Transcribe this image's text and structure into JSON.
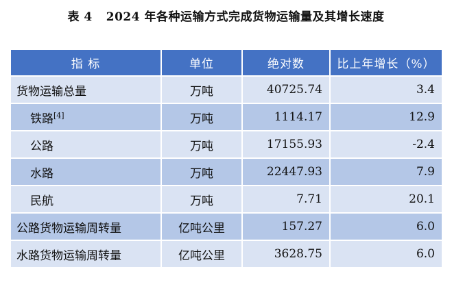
{
  "title": {
    "label": "表 4",
    "text": "2024 年各种运输方式完成货物运输量及其增长速度"
  },
  "headers": [
    "指  标",
    "单位",
    "绝对数",
    "比上年增长（%）"
  ],
  "rows": [
    {
      "name": "货物运输总量",
      "note": "",
      "unit": "万吨",
      "value": "40725.74",
      "growth": "3.4"
    },
    {
      "name": "铁路",
      "note": "[4]",
      "unit": "万吨",
      "value": "1114.17",
      "growth": "12.9"
    },
    {
      "name": "公路",
      "note": "",
      "unit": "万吨",
      "value": "17155.93",
      "growth": "-2.4"
    },
    {
      "name": "水路",
      "note": "",
      "unit": "万吨",
      "value": "22447.93",
      "growth": "7.9"
    },
    {
      "name": "民航",
      "note": "",
      "unit": "万吨",
      "value": "7.71",
      "growth": "20.1"
    },
    {
      "name": "公路货物运输周转量",
      "note": "",
      "unit": "亿吨公里",
      "value": "157.27",
      "growth": "6.0"
    },
    {
      "name": "水路货物运输周转量",
      "note": "",
      "unit": "亿吨公里",
      "value": "3628.75",
      "growth": "6.0"
    }
  ],
  "colors": {
    "header_bg": "#4472c4",
    "row_light": "#dae3f3",
    "row_dark": "#b4c7e7"
  }
}
